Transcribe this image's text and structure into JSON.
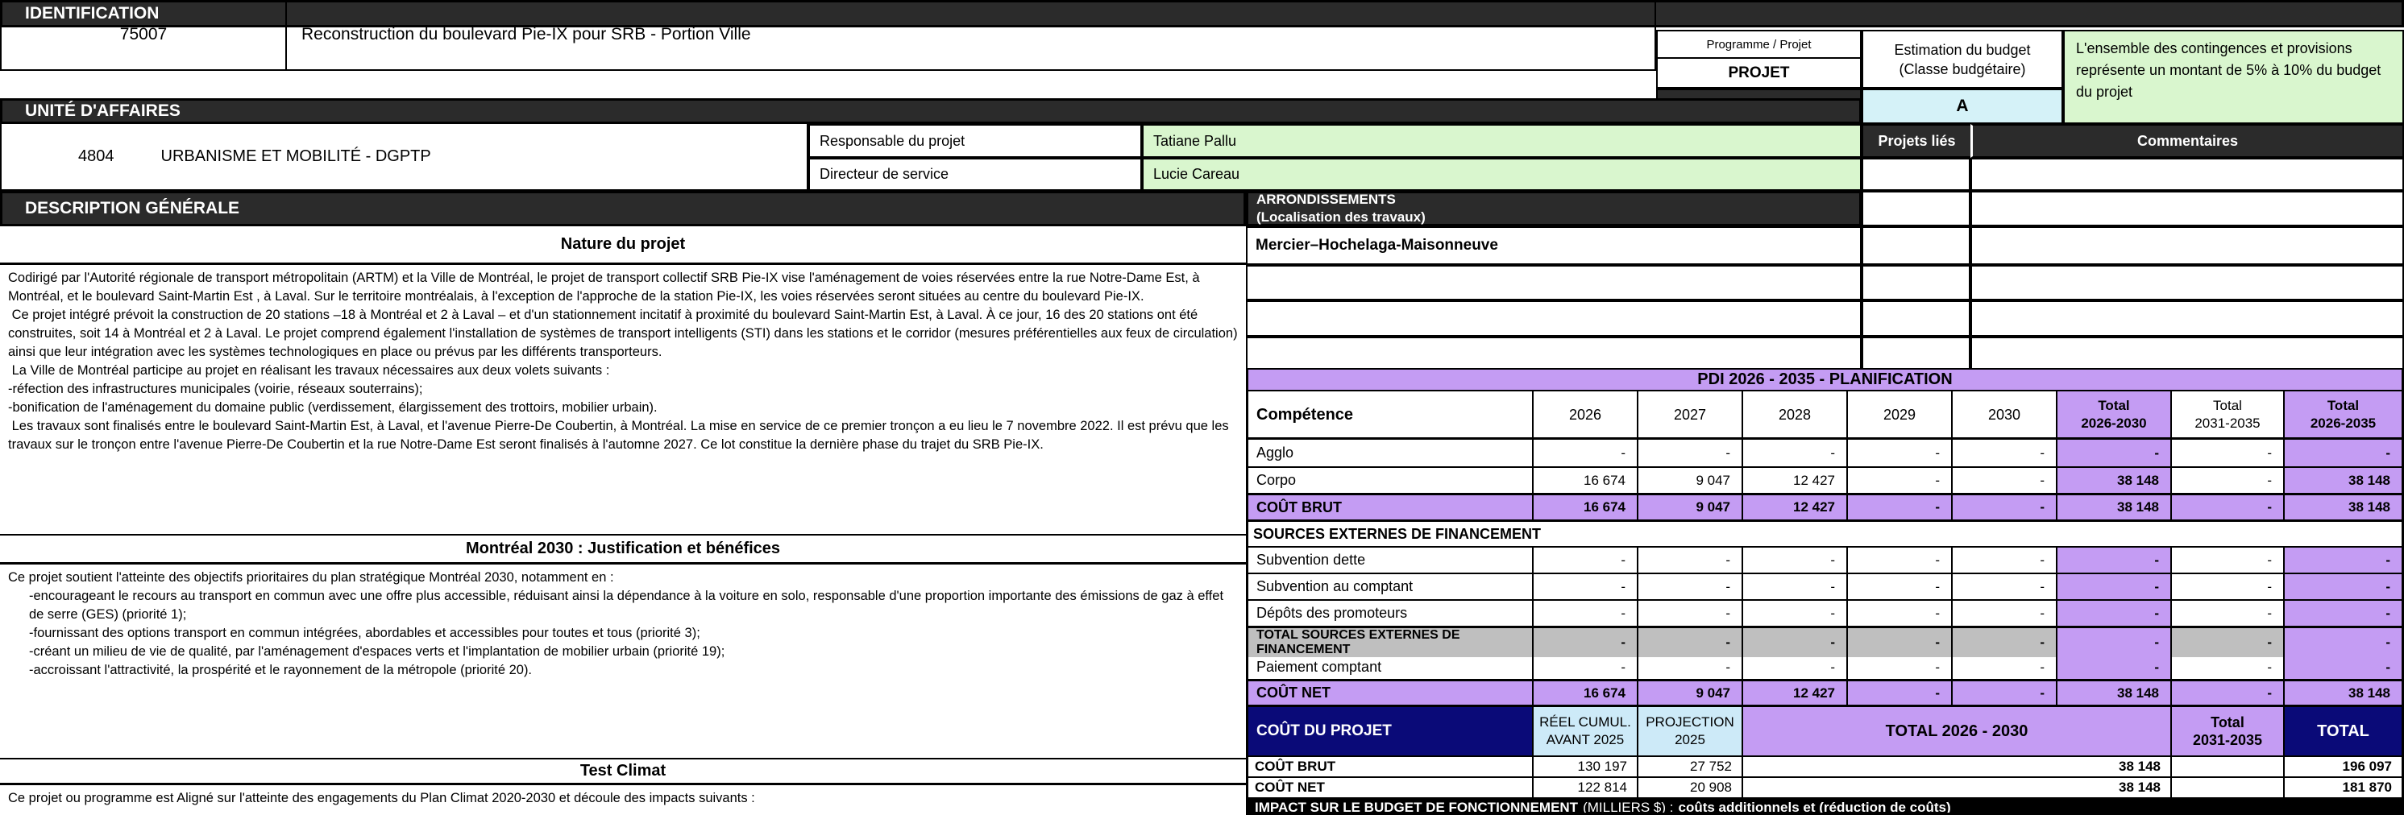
{
  "identification": {
    "section_title": "IDENTIFICATION",
    "project_id": "75007",
    "project_name": "Reconstruction du boulevard Pie-IX pour SRB - Portion Ville",
    "programme_projet_label": "Programme / Projet",
    "programme_projet_value": "PROJET",
    "budget_class_label": "Estimation du budget\n(Classe budgétaire)",
    "budget_class_value": "A",
    "contingency_note": "L'ensemble des contingences et provisions représente un montant de  5% à 10% du budget du projet"
  },
  "unite_affaires": {
    "section_title": "UNITÉ D'AFFAIRES",
    "unit_id": "4804",
    "unit_name": "URBANISME ET MOBILITÉ - DGPTP",
    "responsable_label": "Responsable du projet",
    "responsable_value": "Tatiane Pallu",
    "directeur_label": "Directeur de service",
    "directeur_value": "Lucie Careau"
  },
  "linked_columns": {
    "projets_lies_label": "Projets liés",
    "commentaires_label": "Commentaires"
  },
  "description": {
    "section_title": "DESCRIPTION GÉNÉRALE",
    "nature_title": "Nature du projet",
    "nature_lines": [
      "Codirigé par l'Autorité régionale de transport métropolitain (ARTM) et la Ville de Montréal, le projet de transport collectif SRB Pie-IX vise l'aménagement de voies réservées entre la rue Notre-Dame Est, à Montréal, et le boulevard Saint-Martin Est , à Laval. Sur le territoire montréalais, à l'exception de l'approche de la station Pie-IX, les voies réservées seront situées au centre du boulevard Pie-IX.",
      " Ce projet intégré prévoit la construction de 20 stations –18 à Montréal et 2 à Laval – et d'un stationnement incitatif à proximité du boulevard Saint-Martin Est, à Laval. À ce jour, 16 des 20 stations ont été construites, soit 14 à Montréal et 2 à Laval. Le projet comprend également l'installation de systèmes de transport intelligents (STI) dans les stations et le corridor (mesures préférentielles aux feux de circulation) ainsi que leur intégration avec les systèmes technologiques en place ou prévus par les différents transporteurs.",
      " La Ville de Montréal participe au projet en réalisant les travaux nécessaires aux deux volets suivants :",
      "-réfection des infrastructures municipales (voirie, réseaux souterrains);",
      "-bonification de l'aménagement du domaine public (verdissement, élargissement des trottoirs, mobilier urbain).",
      " Les travaux sont finalisés entre le boulevard Saint-Martin Est, à Laval, et l'avenue Pierre-De Coubertin, à Montréal. La mise en service de ce premier tronçon a eu lieu le 7 novembre 2022. Il est prévu que les travaux sur le tronçon entre l'avenue Pierre-De Coubertin et la rue Notre-Dame Est seront finalisés à l'automne 2027. Ce lot constitue la dernière phase du trajet du SRB Pie-IX."
    ],
    "montreal2030_title": "Montréal 2030 : Justification et bénéfices",
    "montreal2030_lines": [
      "Ce projet soutient l'atteinte des objectifs prioritaires du plan stratégique Montréal 2030, notamment en :",
      "-encourageant le recours au transport en commun avec une offre plus accessible, réduisant ainsi la dépendance à la voiture en solo, responsable d'une proportion importante des émissions de gaz à effet de serre (GES) (priorité 1);",
      "-fournissant des options transport en commun intégrées, abordables et accessibles pour toutes et tous (priorité 3);",
      "-créant un milieu de vie de qualité, par l'aménagement d'espaces verts et l'implantation de mobilier urbain (priorité 19);",
      "-accroissant l'attractivité, la prospérité et le rayonnement de la métropole (priorité 20)."
    ],
    "test_climat_title": "Test Climat",
    "test_climat_text": "Ce projet ou programme est Aligné sur l'atteinte des engagements du Plan Climat 2020-2030 et découle des impacts suivants :"
  },
  "arrondissements": {
    "header_line1": "ARRONDISSEMENTS",
    "header_line2": "(Localisation des travaux)",
    "values": [
      "Mercier–Hochelaga-Maisonneuve",
      "",
      "",
      ""
    ]
  },
  "pdi": {
    "title": "PDI 2026 - 2035 - PLANIFICATION",
    "columns": [
      "Compétence",
      "2026",
      "2027",
      "2028",
      "2029",
      "2030",
      "Total\n2026-2030",
      "Total\n2031-2035",
      "Total\n2026-2035"
    ],
    "rows": [
      {
        "label": "Agglo",
        "style": "normal",
        "values": [
          "-",
          "-",
          "-",
          "-",
          "-",
          "-",
          "-",
          "-"
        ]
      },
      {
        "label": "Corpo",
        "style": "normal",
        "values": [
          "16 674",
          "9 047",
          "12 427",
          "-",
          "-",
          "38 148",
          "-",
          "38 148"
        ]
      },
      {
        "label": "COÛT BRUT",
        "style": "purple",
        "values": [
          "16 674",
          "9 047",
          "12 427",
          "-",
          "-",
          "38 148",
          "-",
          "38 148"
        ]
      },
      {
        "label": "SOURCES EXTERNES DE FINANCEMENT",
        "style": "section",
        "values": []
      },
      {
        "label": "Subvention dette",
        "style": "normal",
        "values": [
          "-",
          "-",
          "-",
          "-",
          "-",
          "-",
          "-",
          "-"
        ]
      },
      {
        "label": "Subvention au comptant",
        "style": "normal",
        "values": [
          "-",
          "-",
          "-",
          "-",
          "-",
          "-",
          "-",
          "-"
        ]
      },
      {
        "label": "Dépôts des promoteurs",
        "style": "normal",
        "values": [
          "-",
          "-",
          "-",
          "-",
          "-",
          "-",
          "-",
          "-"
        ]
      },
      {
        "label": "TOTAL SOURCES EXTERNES DE FINANCEMENT",
        "style": "gray",
        "values": [
          "-",
          "-",
          "-",
          "-",
          "-",
          "-",
          "-",
          "-"
        ]
      },
      {
        "label": "Paiement comptant",
        "style": "normal",
        "values": [
          "-",
          "-",
          "-",
          "-",
          "-",
          "-",
          "-",
          "-"
        ]
      },
      {
        "label": "COÛT NET",
        "style": "purple",
        "values": [
          "16 674",
          "9 047",
          "12 427",
          "-",
          "-",
          "38 148",
          "-",
          "38 148"
        ]
      }
    ]
  },
  "cout_projet": {
    "header_label": "COÛT DU PROJET",
    "col_reel": "RÉEL CUMUL.\nAVANT 2025",
    "col_projection": "PROJECTION\n2025",
    "col_total_2026_2030": "TOTAL 2026 - 2030",
    "col_total_2031_2035": "Total\n2031-2035",
    "col_total": "TOTAL",
    "rows": [
      {
        "label": "COÛT BRUT",
        "reel": "130 197",
        "projection": "27 752",
        "total_2026_2030": "38 148",
        "total_2031_2035": "",
        "total": "196 097"
      },
      {
        "label": "COÛT NET",
        "reel": "122 814",
        "projection": "20 908",
        "total_2026_2030": "38 148",
        "total_2031_2035": "",
        "total": "181 870"
      }
    ]
  },
  "impact": {
    "part1": "IMPACT SUR LE BUDGET DE FONCTIONNEMENT",
    "part2": "(MILLIERS $) :",
    "part3": "coûts additionnels et (réduction de coûts)"
  }
}
